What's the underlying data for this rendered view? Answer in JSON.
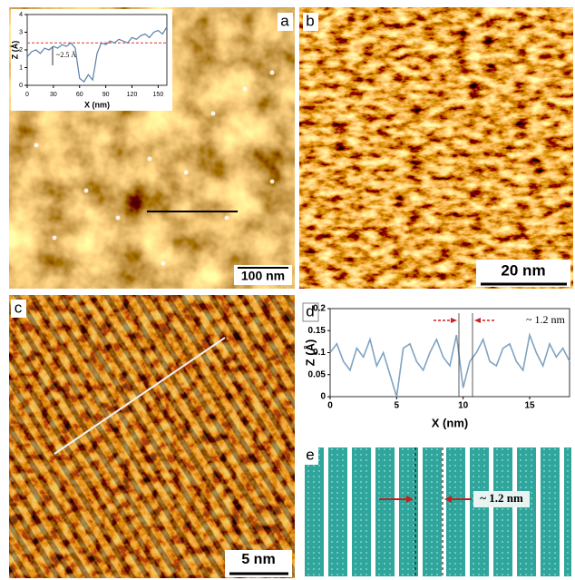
{
  "panels": {
    "labels": [
      "a",
      "b",
      "c",
      "d",
      "e"
    ],
    "scale_bars": [
      "100 nm",
      "20 nm",
      "5 nm"
    ],
    "e_annotation": "~ 1.2 nm"
  },
  "chart_data": [
    {
      "type": "line",
      "xlabel": "X (nm)",
      "ylabel": "Z (Å)",
      "annotation": "~2.5 Å",
      "color": "#5a7fa8",
      "ref_line": 2.4,
      "ref_color": "#e03030",
      "x": [
        0,
        5,
        10,
        15,
        20,
        25,
        30,
        35,
        40,
        45,
        50,
        55,
        60,
        65,
        70,
        75,
        80,
        85,
        90,
        95,
        100,
        105,
        110,
        115,
        120,
        125,
        130,
        135,
        140,
        145,
        150,
        155,
        160
      ],
      "values": [
        1.6,
        1.9,
        2.0,
        1.8,
        2.1,
        2.0,
        2.2,
        2.1,
        2.3,
        2.2,
        2.4,
        2.1,
        0.4,
        0.2,
        0.6,
        0.3,
        1.8,
        2.4,
        2.3,
        2.5,
        2.4,
        2.6,
        2.5,
        2.4,
        2.7,
        2.6,
        2.8,
        2.9,
        2.7,
        3.0,
        3.1,
        2.9,
        3.3
      ],
      "xlim": [
        0,
        160
      ],
      "xticks": [
        0,
        30,
        60,
        90,
        120,
        150
      ],
      "ylim": [
        0,
        4
      ],
      "yticks": [
        0,
        1,
        2,
        3,
        4
      ]
    },
    {
      "type": "line",
      "xlabel": "X (nm)",
      "ylabel": "Z (Å)",
      "annotation": "~ 1.2 nm",
      "color": "#7fa3c3",
      "x": [
        0,
        0.5,
        1,
        1.5,
        2,
        2.5,
        3,
        3.5,
        4,
        4.5,
        5,
        5.5,
        6,
        6.5,
        7,
        7.5,
        8,
        8.5,
        9,
        9.5,
        10,
        10.5,
        11,
        11.5,
        12,
        12.5,
        13,
        13.5,
        14,
        14.5,
        15,
        15.5,
        16,
        16.5,
        17,
        17.5,
        18
      ],
      "values": [
        0.1,
        0.12,
        0.08,
        0.06,
        0.11,
        0.09,
        0.13,
        0.07,
        0.1,
        0.05,
        0.0,
        0.11,
        0.12,
        0.08,
        0.06,
        0.1,
        0.13,
        0.09,
        0.07,
        0.14,
        0.02,
        0.08,
        0.1,
        0.13,
        0.08,
        0.07,
        0.11,
        0.12,
        0.08,
        0.06,
        0.14,
        0.1,
        0.07,
        0.12,
        0.09,
        0.11,
        0.08
      ],
      "xlim": [
        0,
        18
      ],
      "xticks": [
        0,
        5,
        10,
        15
      ],
      "ylim": [
        0,
        0.2
      ],
      "yticks": [
        0,
        0.05,
        0.1,
        0.15,
        0.2
      ]
    }
  ]
}
